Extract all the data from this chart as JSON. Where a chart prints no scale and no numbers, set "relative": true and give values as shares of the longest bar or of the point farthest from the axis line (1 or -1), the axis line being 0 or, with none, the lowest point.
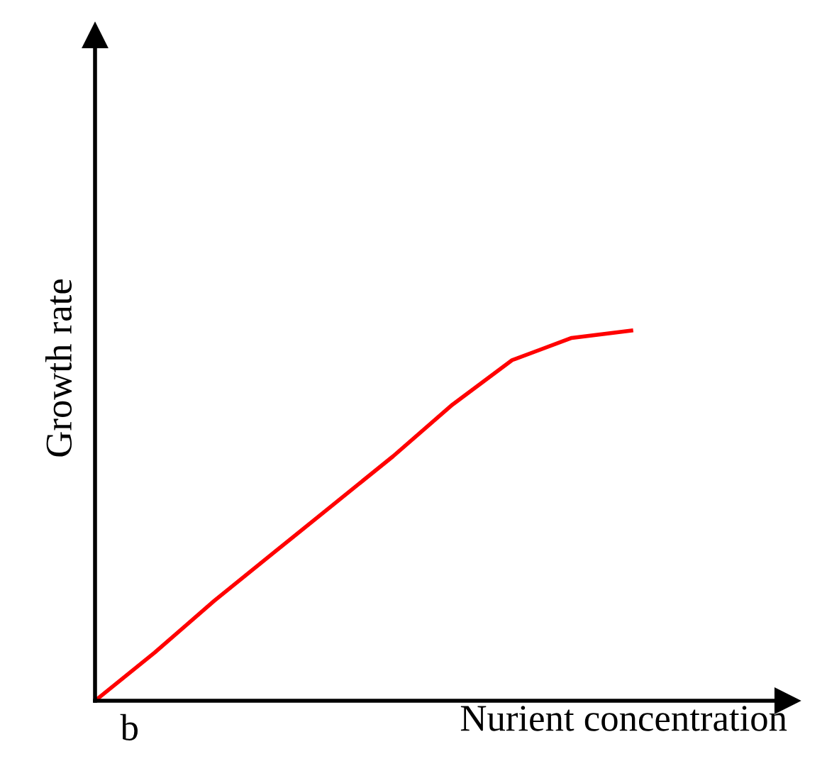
{
  "chart_data": {
    "type": "line",
    "relative": true,
    "xlabel": "Nurient concentration",
    "ylabel": "Growth rate",
    "annotations": [
      "b"
    ],
    "categories": [
      null,
      null,
      null,
      null,
      null,
      null,
      null,
      null,
      null,
      null
    ],
    "series": [
      {
        "color": "#ff0000",
        "values": [
          0,
          0.13,
          0.27,
          0.4,
          0.53,
          0.66,
          0.8,
          0.92,
          0.98,
          1.0
        ]
      }
    ]
  }
}
